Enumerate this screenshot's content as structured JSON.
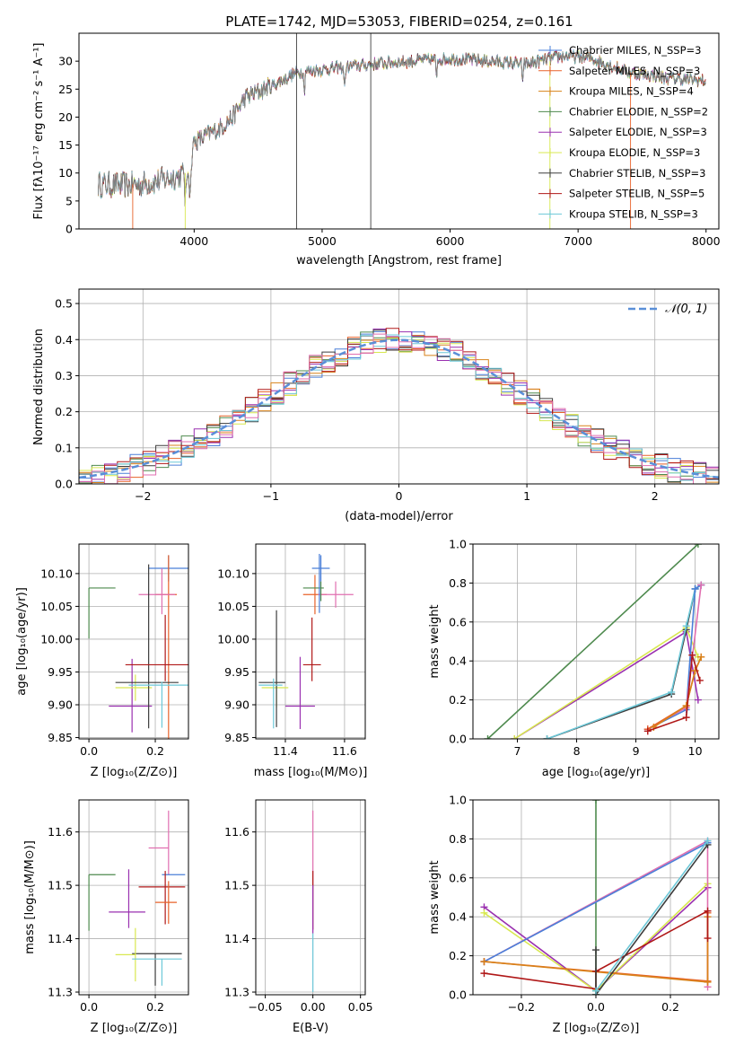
{
  "title": "PLATE=1742, MJD=53053, FIBERID=0254, z=0.161",
  "colors": {
    "chabrier_miles": "#4a7fd8",
    "salpeter_miles": "#e8622a",
    "kroupa_miles": "#d8821a",
    "chabrier_elodie": "#4e8a4e",
    "salpeter_elodie": "#9a30b0",
    "kroupa_elodie": "#d8e850",
    "chabrier_stelib": "#3d3d3d",
    "salpeter_stelib": "#b01818",
    "kroupa_stelib": "#6cc8d8",
    "pink": "#e06fb0",
    "gaussian": "#5a8fd8"
  },
  "chart_data": [
    {
      "id": "spectrum",
      "type": "line",
      "title": "PLATE=1742, MJD=53053, FIBERID=0254, z=0.161",
      "xlabel": "wavelength [Angstrom, rest frame]",
      "ylabel": "Flux [fλ10⁻¹⁷ erg cm⁻² s⁻¹ A⁻¹]",
      "xlim": [
        3100,
        8100
      ],
      "ylim": [
        0,
        35
      ],
      "xticks": [
        "4000",
        "5000",
        "6000",
        "7000",
        "8000"
      ],
      "yticks": [
        "0",
        "5",
        "10",
        "15",
        "20",
        "25",
        "30"
      ],
      "legend": [
        "Chabrier MILES, N_SSP=3",
        "Salpeter MILES, N_SSP=3",
        "Kroupa MILES, N_SSP=4",
        "Chabrier ELODIE, N_SSP=2",
        "Salpeter ELODIE, N_SSP=3",
        "Kroupa ELODIE, N_SSP=3",
        "Chabrier STELIB, N_SSP=3",
        "Salpeter STELIB, N_SSP=5",
        "Kroupa STELIB, N_SSP=3"
      ],
      "envelope": [
        [
          3250,
          8
        ],
        [
          3400,
          7.8
        ],
        [
          3600,
          8
        ],
        [
          3800,
          9
        ],
        [
          3950,
          10
        ],
        [
          4000,
          15.5
        ],
        [
          4200,
          18
        ],
        [
          4300,
          20
        ],
        [
          4400,
          23.5
        ],
        [
          4600,
          25.5
        ],
        [
          4800,
          28
        ],
        [
          5000,
          28.5
        ],
        [
          5200,
          29
        ],
        [
          5400,
          29.5
        ],
        [
          5700,
          30
        ],
        [
          6000,
          30.5
        ],
        [
          6300,
          30
        ],
        [
          6600,
          29.5
        ],
        [
          6900,
          31
        ],
        [
          7100,
          30.5
        ],
        [
          7400,
          28
        ],
        [
          7700,
          27
        ],
        [
          8000,
          26.5
        ]
      ]
    },
    {
      "id": "residuals",
      "type": "histogram",
      "xlabel": "(data-model)/error",
      "ylabel": "Normed distribution",
      "xlim": [
        -2.5,
        2.5
      ],
      "ylim": [
        0,
        0.54
      ],
      "xticks": [
        "−2",
        "−1",
        "0",
        "1",
        "2"
      ],
      "yticks": [
        "0.0",
        "0.1",
        "0.2",
        "0.3",
        "0.4",
        "0.5"
      ],
      "legend": "𝒩(0, 1)",
      "bin_width": 0.1
    },
    {
      "id": "age_vs_Z",
      "type": "scatter",
      "xlabel": "Z [log₁₀(Z/Z⊙)]",
      "ylabel": "age  [log₁₀(age/yr)]",
      "xlim": [
        -0.03,
        0.3
      ],
      "ylim": [
        9.848,
        10.145
      ],
      "xticks": [
        {
          "v": 0.0,
          "t": "0.0"
        },
        {
          "v": 0.2,
          "t": "0.2"
        }
      ],
      "yticks": [
        {
          "v": 9.85,
          "t": "9.85"
        },
        {
          "v": 9.9,
          "t": "9.90"
        },
        {
          "v": 9.95,
          "t": "9.95"
        },
        {
          "v": 10.0,
          "t": "10.00"
        },
        {
          "v": 10.05,
          "t": "10.05"
        },
        {
          "v": 10.1,
          "t": "10.10"
        }
      ],
      "points": [
        {
          "c": "chabrier_miles",
          "x": 0.24,
          "y": 10.108,
          "xl": 0.06,
          "xh": 0.06,
          "yl": 0.02,
          "yh": 0.02
        },
        {
          "c": "salpeter_miles",
          "x": 0.24,
          "y": 10.068,
          "xl": 0.04,
          "xh": 0.025,
          "yl": 0.22,
          "yh": 0.06
        },
        {
          "c": "pink",
          "x": 0.22,
          "y": 10.068,
          "xl": 0.07,
          "xh": 0.04,
          "yl": 0.03,
          "yh": 0.04
        },
        {
          "c": "chabrier_elodie",
          "x": 0.0,
          "y": 10.078,
          "xl": 0.0,
          "xh": 0.08,
          "yl": 0.077,
          "yh": 0.0
        },
        {
          "c": "salpeter_elodie",
          "x": 0.13,
          "y": 9.898,
          "xl": 0.07,
          "xh": 0.06,
          "yl": 0.04,
          "yh": 0.072
        },
        {
          "c": "kroupa_elodie",
          "x": 0.14,
          "y": 9.926,
          "xl": 0.06,
          "xh": 0.05,
          "yl": 0.02,
          "yh": 0.02
        },
        {
          "c": "chabrier_stelib",
          "x": 0.18,
          "y": 9.934,
          "xl": 0.1,
          "xh": 0.09,
          "yl": 0.07,
          "yh": 0.18
        },
        {
          "c": "salpeter_stelib",
          "x": 0.23,
          "y": 9.961,
          "xl": 0.12,
          "xh": 0.07,
          "yl": 0.025,
          "yh": 0.076
        },
        {
          "c": "kroupa_stelib",
          "x": 0.22,
          "y": 9.93,
          "xl": 0.1,
          "xh": 0.08,
          "yl": 0.065,
          "yh": 0.005
        }
      ]
    },
    {
      "id": "age_vs_mass",
      "type": "scatter",
      "xlabel": "mass [log₁₀(M/M⊙)]",
      "xlim": [
        11.3,
        11.67
      ],
      "ylim": [
        9.848,
        10.145
      ],
      "xticks": [
        {
          "v": 11.4,
          "t": "11.4"
        },
        {
          "v": 11.6,
          "t": "11.6"
        }
      ],
      "yticks": [
        {
          "v": 9.85,
          "t": "9.85"
        },
        {
          "v": 9.9,
          "t": "9.90"
        },
        {
          "v": 9.95,
          "t": "9.95"
        },
        {
          "v": 10.0,
          "t": "10.00"
        },
        {
          "v": 10.05,
          "t": "10.05"
        },
        {
          "v": 10.1,
          "t": "10.10"
        }
      ],
      "points": [
        {
          "c": "chabrier_miles",
          "x": 11.52,
          "y": 10.108,
          "xl": 0.03,
          "xh": 0.03,
          "yl": 0.02,
          "yh": 0.02
        },
        {
          "c": "salpeter_miles",
          "x": 11.5,
          "y": 10.068,
          "xl": 0.04,
          "xh": 0.04,
          "yl": 0.03,
          "yh": 0.03
        },
        {
          "c": "pink",
          "x": 11.57,
          "y": 10.068,
          "xl": 0.06,
          "xh": 0.06,
          "yl": 0.02,
          "yh": 0.02
        },
        {
          "c": "chabrier_elodie",
          "x": 11.52,
          "y": 10.078,
          "xl": 0.06,
          "xh": 0.01,
          "yl": 0.02,
          "yh": 0.01
        },
        {
          "c": "salpeter_elodie",
          "x": 11.45,
          "y": 9.898,
          "xl": 0.05,
          "xh": 0.05,
          "yl": 0.035,
          "yh": 0.075
        },
        {
          "c": "kroupa_elodie",
          "x": 11.37,
          "y": 9.926,
          "xl": 0.05,
          "xh": 0.04,
          "yl": 0.03,
          "yh": 0.01
        },
        {
          "c": "chabrier_stelib",
          "x": 11.37,
          "y": 9.934,
          "xl": 0.06,
          "xh": 0.03,
          "yl": 0.068,
          "yh": 0.11
        },
        {
          "c": "salpeter_stelib",
          "x": 11.49,
          "y": 9.961,
          "xl": 0.03,
          "xh": 0.03,
          "yl": 0.025,
          "yh": 0.072
        },
        {
          "c": "kroupa_stelib",
          "x": 11.36,
          "y": 9.93,
          "xl": 0.05,
          "xh": 0.03,
          "yl": 0.066,
          "yh": 0.01
        },
        {
          "c": "chabrier_miles",
          "x": 11.515,
          "y": 10.08,
          "xl": 0.0,
          "xh": 0.0,
          "yl": 0.04,
          "yh": 0.05
        }
      ]
    },
    {
      "id": "weight_vs_age",
      "type": "line",
      "xlabel": "age  [log₁₀(age/yr)]",
      "ylabel": "mass weight",
      "xlim": [
        6.25,
        10.4
      ],
      "ylim": [
        0,
        1.0
      ],
      "xticks": [
        {
          "v": 7,
          "t": "7"
        },
        {
          "v": 8,
          "t": "8"
        },
        {
          "v": 9,
          "t": "9"
        },
        {
          "v": 10,
          "t": "10"
        }
      ],
      "yticks": [
        {
          "v": 0,
          "t": "0.0"
        },
        {
          "v": 0.2,
          "t": "0.2"
        },
        {
          "v": 0.4,
          "t": "0.4"
        },
        {
          "v": 0.6,
          "t": "0.6"
        },
        {
          "v": 0.8,
          "t": "0.8"
        },
        {
          "v": 1.0,
          "t": "1.0"
        }
      ],
      "series": [
        {
          "c": "chabrier_elodie",
          "pts": [
            [
              6.5,
              0.0
            ],
            [
              10.05,
              1.0
            ]
          ]
        },
        {
          "c": "salpeter_elodie",
          "pts": [
            [
              6.95,
              0.0
            ],
            [
              9.85,
              0.55
            ],
            [
              10.05,
              0.2
            ]
          ]
        },
        {
          "c": "kroupa_elodie",
          "pts": [
            [
              6.95,
              0.0
            ],
            [
              9.85,
              0.57
            ],
            [
              10.05,
              0.42
            ]
          ]
        },
        {
          "c": "chabrier_stelib",
          "pts": [
            [
              7.5,
              0.0
            ],
            [
              9.6,
              0.23
            ],
            [
              9.85,
              0.56
            ],
            [
              10.0,
              0.77
            ],
            [
              10.1,
              0.79
            ]
          ]
        },
        {
          "c": "kroupa_stelib",
          "pts": [
            [
              7.5,
              0.0
            ],
            [
              9.6,
              0.24
            ],
            [
              9.85,
              0.58
            ],
            [
              10.0,
              0.77
            ],
            [
              10.1,
              0.79
            ]
          ]
        },
        {
          "c": "chabrier_miles",
          "pts": [
            [
              9.2,
              0.05
            ],
            [
              9.85,
              0.15
            ],
            [
              10.0,
              0.77
            ],
            [
              10.1,
              0.79
            ]
          ]
        },
        {
          "c": "pink",
          "pts": [
            [
              9.2,
              0.05
            ],
            [
              9.85,
              0.16
            ],
            [
              10.1,
              0.79
            ]
          ]
        },
        {
          "c": "salpeter_miles",
          "pts": [
            [
              9.2,
              0.05
            ],
            [
              9.85,
              0.17
            ],
            [
              10.0,
              0.35
            ],
            [
              10.1,
              0.42
            ]
          ]
        },
        {
          "c": "kroupa_miles",
          "pts": [
            [
              9.3,
              0.06
            ],
            [
              9.85,
              0.17
            ],
            [
              10.0,
              0.35
            ],
            [
              10.1,
              0.42
            ]
          ]
        },
        {
          "c": "salpeter_stelib",
          "pts": [
            [
              9.2,
              0.04
            ],
            [
              9.85,
              0.11
            ],
            [
              9.95,
              0.43
            ],
            [
              10.08,
              0.3
            ]
          ]
        }
      ]
    },
    {
      "id": "mass_vs_Z",
      "type": "scatter",
      "xlabel": "Z [log₁₀(Z/Z⊙)]",
      "ylabel": "mass [log₁₀(M/M⊙)]",
      "xlim": [
        -0.03,
        0.3
      ],
      "ylim": [
        11.295,
        11.66
      ],
      "xticks": [
        {
          "v": 0.0,
          "t": "0.0"
        },
        {
          "v": 0.2,
          "t": "0.2"
        }
      ],
      "yticks": [
        {
          "v": 11.3,
          "t": "11.3"
        },
        {
          "v": 11.4,
          "t": "11.4"
        },
        {
          "v": 11.5,
          "t": "11.5"
        },
        {
          "v": 11.6,
          "t": "11.6"
        }
      ],
      "points": [
        {
          "c": "pink",
          "x": 0.24,
          "y": 11.57,
          "xl": 0.06,
          "xh": 0.0,
          "yl": 0.05,
          "yh": 0.07
        },
        {
          "c": "chabrier_miles",
          "x": 0.22,
          "y": 11.52,
          "xl": 0.0,
          "xh": 0.07,
          "yl": 0.0,
          "yh": 0.0
        },
        {
          "c": "chabrier_elodie",
          "x": 0.0,
          "y": 11.52,
          "xl": 0.0,
          "xh": 0.08,
          "yl": 0.105,
          "yh": 0.0
        },
        {
          "c": "salpeter_elodie",
          "x": 0.12,
          "y": 11.45,
          "xl": 0.06,
          "xh": 0.05,
          "yl": 0.03,
          "yh": 0.08
        },
        {
          "c": "salpeter_stelib",
          "x": 0.23,
          "y": 11.497,
          "xl": 0.08,
          "xh": 0.06,
          "yl": 0.07,
          "yh": 0.03
        },
        {
          "c": "salpeter_miles",
          "x": 0.24,
          "y": 11.468,
          "xl": 0.04,
          "xh": 0.025,
          "yl": 0.04,
          "yh": 0.04
        },
        {
          "c": "chabrier_stelib",
          "x": 0.2,
          "y": 11.372,
          "xl": 0.07,
          "xh": 0.08,
          "yl": 0.06,
          "yh": 0.0
        },
        {
          "c": "kroupa_elodie",
          "x": 0.14,
          "y": 11.37,
          "xl": 0.06,
          "xh": 0.0,
          "yl": 0.05,
          "yh": 0.05
        },
        {
          "c": "kroupa_stelib",
          "x": 0.22,
          "y": 11.362,
          "xl": 0.09,
          "xh": 0.06,
          "yl": 0.05,
          "yh": 0.0
        }
      ]
    },
    {
      "id": "mass_vs_ebv",
      "type": "scatter",
      "xlabel": "E(B-V)",
      "xlim": [
        -0.06,
        0.055
      ],
      "ylim": [
        11.295,
        11.66
      ],
      "xticks": [
        {
          "v": -0.05,
          "t": "−0.05"
        },
        {
          "v": 0.0,
          "t": "0.00"
        },
        {
          "v": 0.05,
          "t": "0.05"
        }
      ],
      "yticks": [
        {
          "v": 11.3,
          "t": "11.3"
        },
        {
          "v": 11.4,
          "t": "11.4"
        },
        {
          "v": 11.5,
          "t": "11.5"
        },
        {
          "v": 11.6,
          "t": "11.6"
        }
      ],
      "points": [
        {
          "c": "pink",
          "x": 0.0,
          "y": 11.57,
          "xl": 0.0,
          "xh": 0.0,
          "yl": 0.07,
          "yh": 0.07
        },
        {
          "c": "salpeter_stelib",
          "x": 0.0,
          "y": 11.497,
          "xl": 0.0,
          "xh": 0.0,
          "yl": 0.08,
          "yh": 0.03
        },
        {
          "c": "salpeter_elodie",
          "x": 0.0,
          "y": 11.45,
          "xl": 0.0,
          "xh": 0.0,
          "yl": 0.04,
          "yh": 0.05
        },
        {
          "c": "kroupa_stelib",
          "x": 0.0,
          "y": 11.36,
          "xl": 0.0,
          "xh": 0.0,
          "yl": 0.06,
          "yh": 0.05
        }
      ]
    },
    {
      "id": "weight_vs_Z",
      "type": "line",
      "xlabel": "Z [log₁₀(Z/Z⊙)]",
      "ylabel": "mass weight",
      "xlim": [
        -0.33,
        0.33
      ],
      "ylim": [
        0,
        1.0
      ],
      "xticks": [
        {
          "v": -0.2,
          "t": "−0.2"
        },
        {
          "v": 0.0,
          "t": "0.0"
        },
        {
          "v": 0.2,
          "t": "0.2"
        }
      ],
      "yticks": [
        {
          "v": 0,
          "t": "0.0"
        },
        {
          "v": 0.2,
          "t": "0.2"
        },
        {
          "v": 0.4,
          "t": "0.4"
        },
        {
          "v": 0.6,
          "t": "0.6"
        },
        {
          "v": 0.8,
          "t": "0.8"
        },
        {
          "v": 1.0,
          "t": "1.0"
        }
      ],
      "series": [
        {
          "c": "chabrier_elodie",
          "pts": [
            [
              0.0,
              0.0
            ],
            [
              0.0,
              1.0
            ]
          ]
        },
        {
          "c": "salpeter_elodie",
          "pts": [
            [
              -0.3,
              0.45
            ],
            [
              0.0,
              0.02
            ],
            [
              0.3,
              0.55
            ]
          ]
        },
        {
          "c": "kroupa_elodie",
          "pts": [
            [
              -0.3,
              0.42
            ],
            [
              0.0,
              0.02
            ],
            [
              0.3,
              0.57
            ]
          ]
        },
        {
          "c": "pink",
          "pts": [
            [
              -0.3,
              0.17
            ],
            [
              0.3,
              0.79
            ],
            [
              0.3,
              0.04
            ]
          ]
        },
        {
          "c": "chabrier_miles",
          "pts": [
            [
              -0.3,
              0.17
            ],
            [
              0.3,
              0.78
            ]
          ]
        },
        {
          "c": "salpeter_miles",
          "pts": [
            [
              -0.3,
              0.17
            ],
            [
              0.3,
              0.07
            ],
            [
              0.3,
              0.42
            ]
          ]
        },
        {
          "c": "kroupa_miles",
          "pts": [
            [
              -0.3,
              0.17
            ],
            [
              0.3,
              0.065
            ],
            [
              0.3,
              0.4
            ]
          ]
        },
        {
          "c": "salpeter_stelib",
          "pts": [
            [
              -0.3,
              0.11
            ],
            [
              0.0,
              0.03
            ],
            [
              0.0,
              0.12
            ],
            [
              0.3,
              0.43
            ],
            [
              0.3,
              0.29
            ]
          ]
        },
        {
          "c": "chabrier_stelib",
          "pts": [
            [
              0.0,
              0.23
            ],
            [
              0.0,
              0.0
            ],
            [
              0.3,
              0.77
            ]
          ]
        },
        {
          "c": "kroupa_stelib",
          "pts": [
            [
              0.0,
              0.02
            ],
            [
              0.3,
              0.79
            ]
          ]
        }
      ]
    }
  ]
}
